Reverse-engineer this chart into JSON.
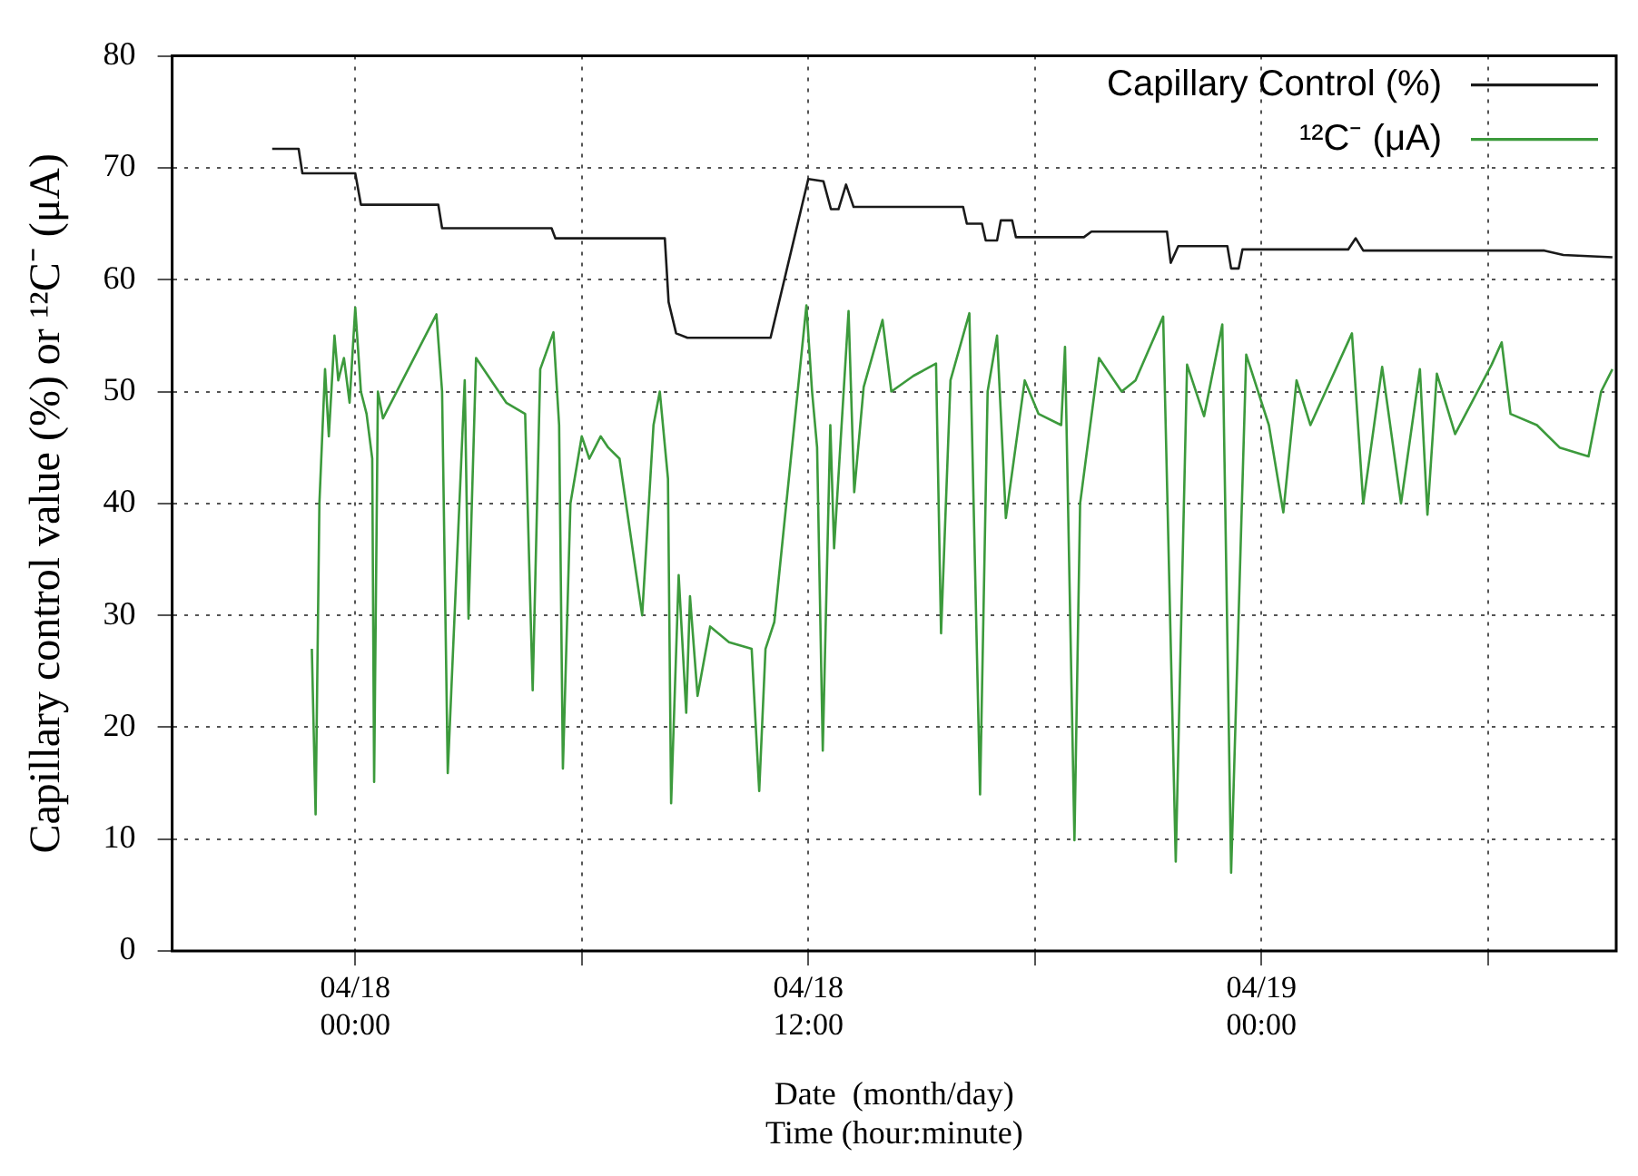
{
  "chart_data": {
    "type": "line",
    "xlabel": "Date  (month/day)\nTime (hour:minute)",
    "ylabel": "Capillary control value (%) or ¹²C⁻ (μA)",
    "xlim": [
      "--04-17T19:09",
      "--04-19T09:24"
    ],
    "xticks": [
      {
        "value": "--04-18T00:00",
        "label": "04/18\n00:00"
      },
      {
        "value": "--04-18T06:00",
        "label": null
      },
      {
        "value": "--04-18T12:00",
        "label": "04/18\n12:00"
      },
      {
        "value": "--04-18T18:00",
        "label": null
      },
      {
        "value": "--04-19T00:00",
        "label": "04/19\n00:00"
      },
      {
        "value": "--04-19T06:00",
        "label": null
      }
    ],
    "ylim": [
      0,
      80
    ],
    "yticks": [
      0,
      10,
      20,
      30,
      40,
      50,
      60,
      70,
      80
    ],
    "grid": true,
    "legend": "top right",
    "line_style": "solid",
    "marker": "none",
    "series": [
      {
        "name": "Capillary Control (%)",
        "color": "#1a1a1a",
        "x": [
          "--04-17T21:48",
          "--04-17T22:30",
          "--04-17T22:36",
          "--04-18T00:00",
          "--04-18T00:09",
          "--04-18T02:12",
          "--04-18T02:18",
          "--04-18T05:12",
          "--04-18T05:18",
          "--04-18T08:12",
          "--04-18T08:18",
          "--04-18T08:30",
          "--04-18T08:48",
          "--04-18T11:00",
          "--04-18T12:00",
          "--04-18T12:24",
          "--04-18T12:36",
          "--04-18T12:48",
          "--04-18T13:00",
          "--04-18T13:12",
          "--04-18T16:06",
          "--04-18T16:12",
          "--04-18T16:36",
          "--04-18T16:42",
          "--04-18T17:00",
          "--04-18T17:06",
          "--04-18T17:24",
          "--04-18T17:30",
          "--04-18T19:18",
          "--04-18T19:30",
          "--04-18T21:30",
          "--04-18T21:36",
          "--04-18T21:48",
          "--04-18T23:06",
          "--04-18T23:12",
          "--04-18T23:24",
          "--04-18T23:30",
          "--04-19T02:18",
          "--04-19T02:30",
          "--04-19T02:42",
          "--04-19T07:30",
          "--04-19T08:00",
          "--04-19T09:18"
        ],
        "values": [
          71.7,
          71.7,
          69.5,
          69.5,
          66.7,
          66.7,
          64.6,
          64.6,
          63.7,
          63.7,
          58,
          55.2,
          54.8,
          54.8,
          69,
          68.8,
          66.3,
          66.3,
          68.5,
          66.5,
          66.5,
          65,
          65,
          63.5,
          63.5,
          65.3,
          65.3,
          63.8,
          63.8,
          64.3,
          64.3,
          61.5,
          63,
          63,
          61,
          61,
          62.7,
          62.7,
          63.7,
          62.6,
          62.6,
          62.2,
          62
        ]
      },
      {
        "name": "¹²C⁻ (μA)",
        "color": "#3c9a3c",
        "x": [
          "--04-17T22:51",
          "--04-17T22:57",
          "--04-17T23:03",
          "--04-17T23:12",
          "--04-17T23:18",
          "--04-17T23:27",
          "--04-17T23:33",
          "--04-17T23:42",
          "--04-17T23:51",
          "--04-18T00:00",
          "--04-18T00:09",
          "--04-18T00:18",
          "--04-18T00:27",
          "--04-18T00:30",
          "--04-18T00:36",
          "--04-18T00:44",
          "--04-18T02:09",
          "--04-18T02:18",
          "--04-18T02:27",
          "--04-18T02:54",
          "--04-18T03:00",
          "--04-18T03:12",
          "--04-18T03:48",
          "--04-18T04:00",
          "--04-18T04:30",
          "--04-18T04:42",
          "--04-18T04:54",
          "--04-18T05:15",
          "--04-18T05:24",
          "--04-18T05:30",
          "--04-18T05:42",
          "--04-18T06:00",
          "--04-18T06:12",
          "--04-18T06:30",
          "--04-18T06:42",
          "--04-18T07:00",
          "--04-18T07:36",
          "--04-18T07:54",
          "--04-18T08:04",
          "--04-18T08:17",
          "--04-18T08:22",
          "--04-18T08:34",
          "--04-18T08:46",
          "--04-18T08:52",
          "--04-18T09:04",
          "--04-18T09:24",
          "--04-18T09:54",
          "--04-18T10:30",
          "--04-18T10:42",
          "--04-18T10:52",
          "--04-18T11:06",
          "--04-18T11:57",
          "--04-18T12:06",
          "--04-18T12:14",
          "--04-18T12:23",
          "--04-18T12:35",
          "--04-18T12:41",
          "--04-18T13:04",
          "--04-18T13:13",
          "--04-18T13:28",
          "--04-18T13:58",
          "--04-18T14:12",
          "--04-18T14:47",
          "--04-18T15:23",
          "--04-18T15:31",
          "--04-18T15:46",
          "--04-18T16:16",
          "--04-18T16:33",
          "--04-18T16:45",
          "--04-18T17:00",
          "--04-18T17:14",
          "--04-18T17:44",
          "--04-18T18:06",
          "--04-18T18:42",
          "--04-18T18:48",
          "--04-18T19:03",
          "--04-18T19:12",
          "--04-18T19:42",
          "--04-18T20:18",
          "--04-18T20:40",
          "--04-18T21:24",
          "--04-18T21:44",
          "--04-18T22:02",
          "--04-18T22:29",
          "--04-18T22:58",
          "--04-18T23:12",
          "--04-18T23:36",
          "--04-19T00:12",
          "--04-19T00:35",
          "--04-19T00:56",
          "--04-19T01:18",
          "--04-19T02:24",
          "--04-19T02:42",
          "--04-19T03:12",
          "--04-19T03:42",
          "--04-19T04:12",
          "--04-19T04:24",
          "--04-19T04:39",
          "--04-19T05:08",
          "--04-19T06:06",
          "--04-19T06:22",
          "--04-19T06:36",
          "--04-19T07:18",
          "--04-19T07:54",
          "--04-19T08:40",
          "--04-19T09:00",
          "--04-19T09:18"
        ],
        "values": [
          27,
          12.2,
          40,
          52,
          46,
          55,
          51,
          53,
          49,
          57.5,
          50,
          48,
          44,
          15.1,
          50,
          47.6,
          56.9,
          50,
          15.9,
          51,
          29.7,
          53,
          50,
          49,
          48,
          23.3,
          52,
          55.3,
          47,
          16.3,
          40,
          46,
          44,
          46,
          45,
          44,
          30,
          47,
          50,
          42.2,
          13.2,
          33.6,
          21.3,
          31.7,
          22.8,
          29,
          27.6,
          27,
          14.3,
          27,
          29.4,
          57.7,
          50,
          45,
          17.9,
          47,
          36,
          57.2,
          41,
          50.4,
          56.4,
          50,
          51.4,
          52.5,
          28.4,
          51,
          57,
          14,
          50,
          55,
          38.7,
          51,
          48,
          47,
          54,
          9.9,
          40,
          53,
          50,
          51,
          56.7,
          8,
          52.4,
          47.8,
          56,
          7,
          53.3,
          47,
          39.2,
          51,
          47,
          55.2,
          40,
          52.2,
          40,
          52,
          39,
          51.6,
          46.2,
          52.4,
          54.4,
          48,
          47,
          45,
          44.2,
          50,
          52
        ]
      }
    ]
  }
}
